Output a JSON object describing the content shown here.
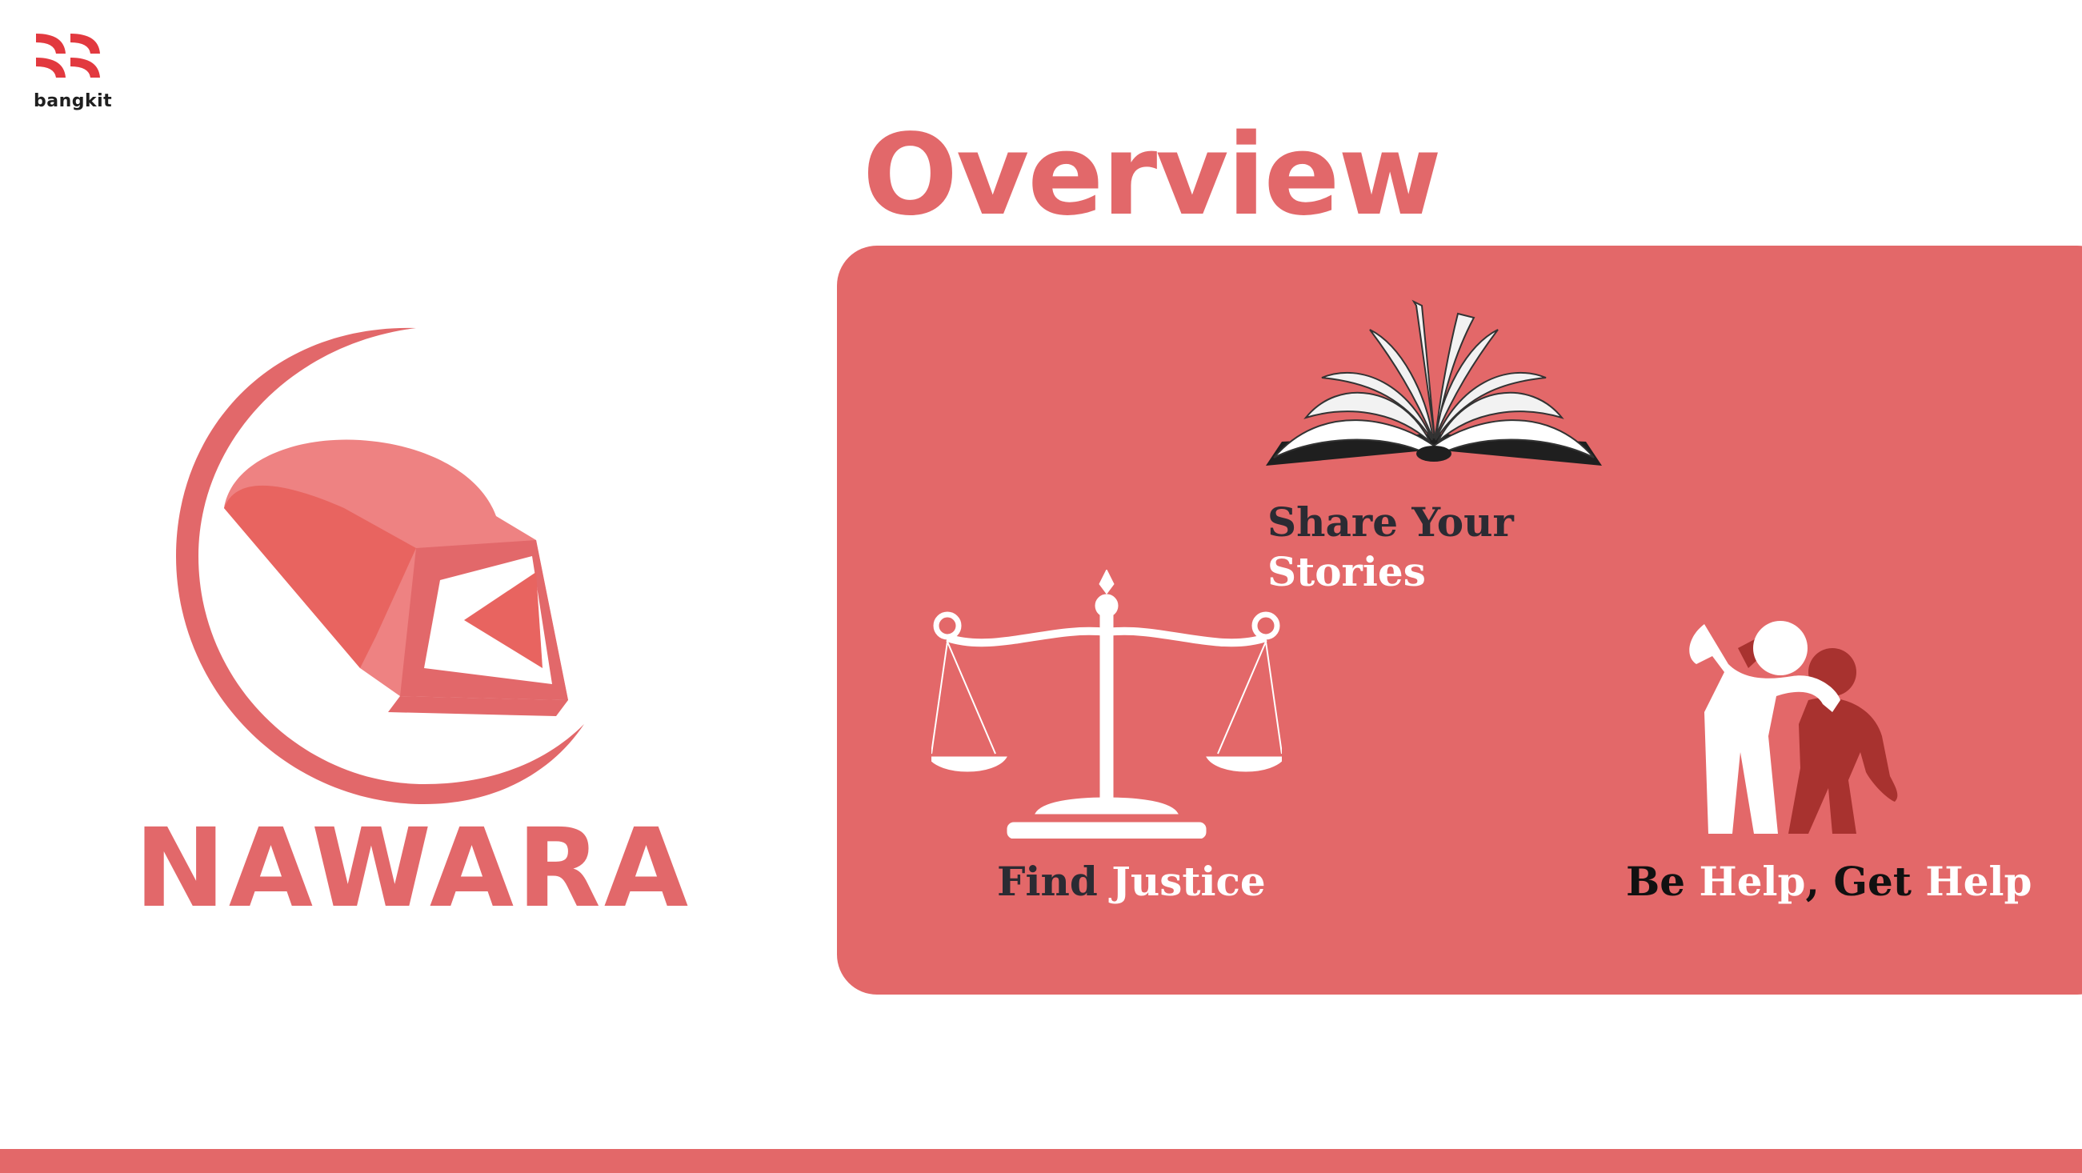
{
  "brand": {
    "bangkit_label": "bangkit"
  },
  "slide": {
    "title": "Overview"
  },
  "app": {
    "name": "NAWARA"
  },
  "features": {
    "share": {
      "line1": "Share Your",
      "line2": "Stories"
    },
    "justice": {
      "word1": "Find",
      "word2": "Justice"
    },
    "help": {
      "w1": "Be",
      "w2": "Help",
      "w3": ",",
      "w4": "Get",
      "w5": "Help"
    }
  },
  "colors": {
    "accent": "#e36869",
    "dark_text": "#2b2b33",
    "light_text": "#ffffff"
  },
  "icons": [
    "bangkit-logo-icon",
    "nawara-logo-icon",
    "book-icon",
    "scale-icon",
    "people-helping-icon"
  ]
}
